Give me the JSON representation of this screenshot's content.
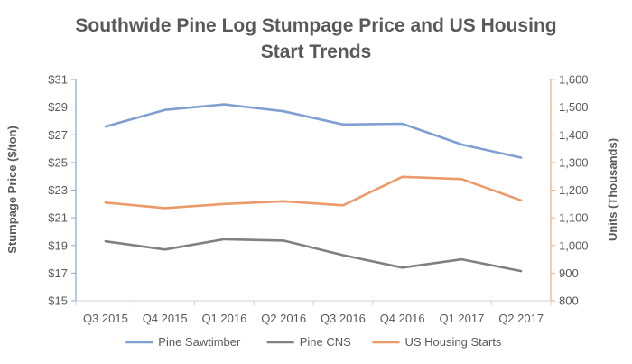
{
  "chart_data": {
    "type": "line",
    "title_lines": [
      "Southwide Pine Log Stumpage Price and US Housing",
      "Start Trends"
    ],
    "categories": [
      "Q3 2015",
      "Q4 2015",
      "Q1 2016",
      "Q2 2016",
      "Q3 2016",
      "Q4 2016",
      "Q1 2017",
      "Q2 2017"
    ],
    "ylabel_left": "Stumpage Price ($/ton)",
    "ylabel_right": "Units (Thousands)",
    "left_axis": {
      "ylim": [
        15,
        31
      ],
      "ticks": [
        15,
        17,
        19,
        21,
        23,
        25,
        27,
        29,
        31
      ],
      "tick_labels": [
        "$15",
        "$17",
        "$19",
        "$21",
        "$23",
        "$25",
        "$27",
        "$29",
        "$31"
      ],
      "color": "#8eaadb"
    },
    "right_axis": {
      "ylim": [
        800,
        1600
      ],
      "ticks": [
        800,
        900,
        1000,
        1100,
        1200,
        1300,
        1400,
        1500,
        1600
      ],
      "tick_labels": [
        "800",
        "900",
        "1,000",
        "1,100",
        "1,200",
        "1,300",
        "1,400",
        "1,500",
        "1,600"
      ],
      "color": "#f4b183"
    },
    "series": [
      {
        "name": "Pine Sawtimber",
        "axis": "left",
        "color": "#7f9fd3",
        "values": [
          27.6,
          28.8,
          29.2,
          28.7,
          27.75,
          27.8,
          26.3,
          25.35
        ]
      },
      {
        "name": "Pine CNS",
        "axis": "left",
        "color": "#808080",
        "values": [
          19.3,
          18.7,
          19.45,
          19.35,
          18.3,
          17.4,
          18.0,
          17.15
        ]
      },
      {
        "name": "US Housing Starts",
        "axis": "right",
        "color": "#ed9a69",
        "values": [
          1155,
          1135,
          1150,
          1160,
          1145,
          1248,
          1240,
          1163
        ]
      }
    ],
    "legend": [
      "Pine Sawtimber",
      "Pine CNS",
      "US Housing Starts"
    ],
    "legend_position": "bottom",
    "grid": false
  }
}
